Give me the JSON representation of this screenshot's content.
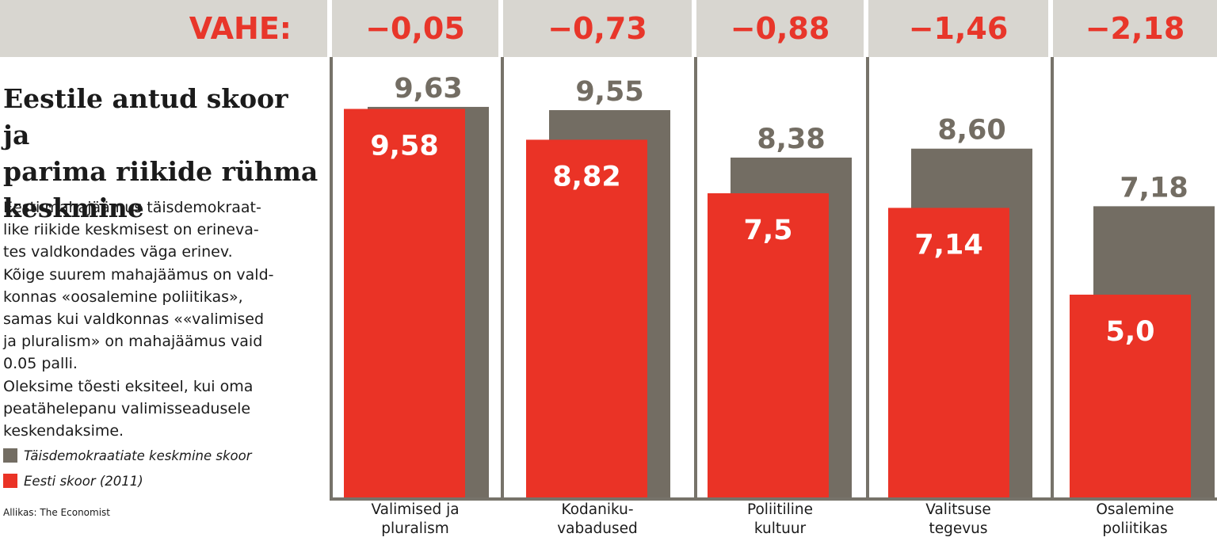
{
  "header": {
    "label": "VAHE:",
    "differences": [
      "−0,05",
      "−0,73",
      "−0,88",
      "−1,46",
      "−2,18"
    ]
  },
  "title_lines": [
    "Eestile antud skoor ja",
    "parima riikide rühma",
    "keskmine"
  ],
  "description_lines": [
    "Eesti mahajäämus täisdemokraat-",
    "like riikide keskmisest on erineva-",
    "tes valdkondades väga erinev.",
    "Kõige suurem mahajäämus on vald-",
    "konnas «oosalemine poliitikas»,",
    "samas kui valdkonnas ««valimised",
    "ja pluralism» on mahajäämus vaid",
    "0.05 palli.",
    "Oleksime tõesti eksiteel, kui oma",
    "peatähelepanu valimisseadusele",
    "keskendaksime."
  ],
  "legend": [
    {
      "label": "Täisdemokraatiate keskmine skoor",
      "color": "#736d63"
    },
    {
      "label": "Eesti skoor (2011)",
      "color": "#ea3326"
    }
  ],
  "source": "Allikas: The Economist",
  "colors": {
    "accent_red": "#e8362a",
    "bar_gray": "#736d63",
    "bar_red": "#ea3326",
    "header_bg": "#d8d6d0",
    "divider": "#77736a",
    "text_dark": "#1b1b1b"
  },
  "chart_data": {
    "type": "bar",
    "categories": [
      [
        "Valimised ja",
        "pluralism"
      ],
      [
        "Kodaniku-",
        "vabadused"
      ],
      [
        "Poliitiline",
        "kultuur"
      ],
      [
        "Valitsuse",
        "tegevus"
      ],
      [
        "Osalemine",
        "poliitikas"
      ]
    ],
    "series": [
      {
        "name": "Täisdemokraatiate keskmine skoor",
        "values": [
          9.63,
          9.55,
          8.38,
          8.6,
          7.18
        ],
        "labels": [
          "9,63",
          "9,55",
          "8,38",
          "8,60",
          "7,18"
        ]
      },
      {
        "name": "Eesti skoor (2011)",
        "values": [
          9.58,
          8.82,
          7.5,
          7.14,
          5.0
        ],
        "labels": [
          "9,58",
          "8,82",
          "7,5",
          "7,14",
          "5,0"
        ]
      }
    ],
    "differences": [
      -0.05,
      -0.73,
      -0.88,
      -1.46,
      -2.18
    ],
    "ylim": [
      0,
      10
    ],
    "grid": false,
    "legend_position": "bottom-left",
    "title": "",
    "xlabel": "",
    "ylabel": ""
  }
}
